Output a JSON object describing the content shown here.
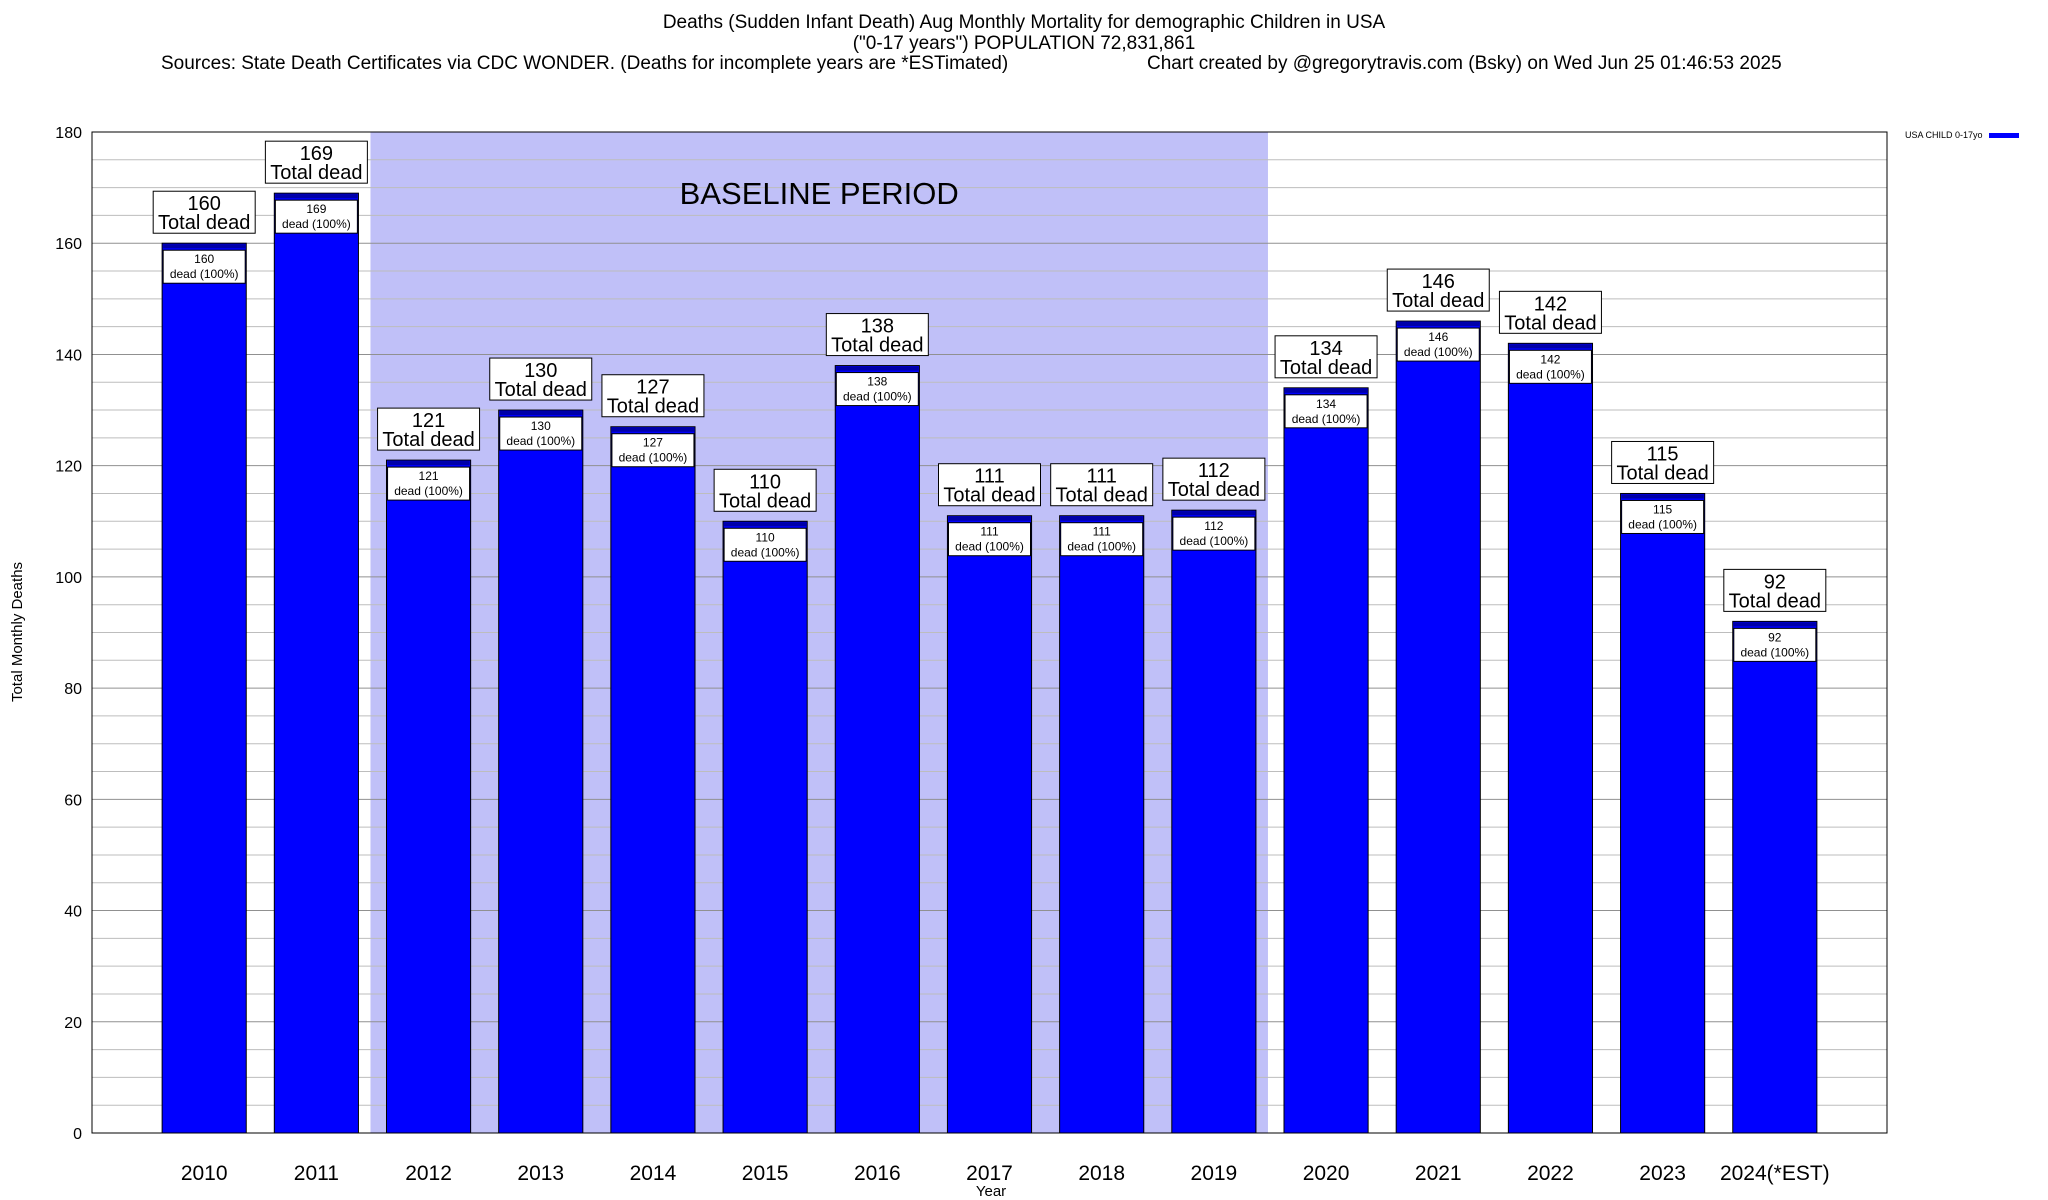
{
  "header": {
    "title_line1": "Deaths (Sudden Infant Death) Aug Monthly Mortality for demographic Children in USA",
    "title_line2": "(\"0-17 years\") POPULATION 72,831,861",
    "sources": "Sources: State Death Certificates via CDC WONDER. (Deaths for incomplete years are *ESTimated)",
    "credit": "Chart created by @gregorytravis.com (Bsky) on Wed Jun 25 01:46:53 2025"
  },
  "chart_data": {
    "type": "bar",
    "categories": [
      "2010",
      "2011",
      "2012",
      "2013",
      "2014",
      "2015",
      "2016",
      "2017",
      "2018",
      "2019",
      "2020",
      "2021",
      "2022",
      "2023",
      "2024(*EST)"
    ],
    "series": [
      {
        "name": "USA CHILD 0-17yo",
        "values": [
          160,
          169,
          121,
          130,
          127,
          110,
          138,
          111,
          111,
          112,
          134,
          146,
          142,
          115,
          92
        ]
      }
    ],
    "xlabel": "Year",
    "ylabel": "Total Monthly Deaths",
    "ylim": [
      0,
      180
    ],
    "yticks": [
      0,
      20,
      40,
      60,
      80,
      100,
      120,
      140,
      160,
      180
    ],
    "grid": true,
    "legend_position": "top-right",
    "top_label_suffix": "Total dead",
    "inner_label_suffix": "dead (100%)",
    "baseline": {
      "label": "BASELINE PERIOD",
      "start": "2012",
      "end": "2019",
      "color": "#c0c0f8"
    },
    "bar_color": "#0000ff"
  }
}
